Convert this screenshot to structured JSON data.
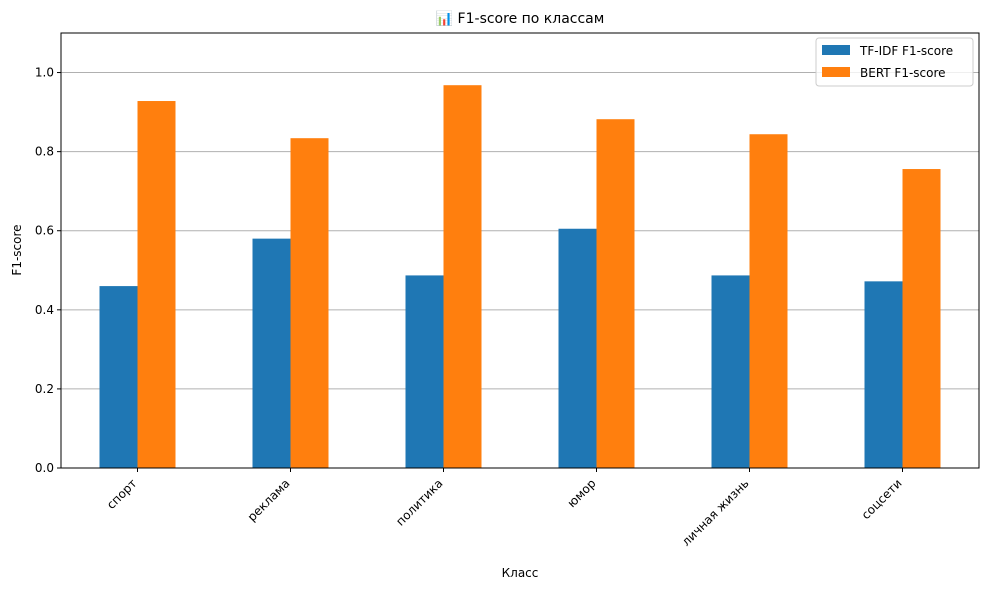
{
  "chart_data": {
    "type": "bar",
    "title": "📊 F1-score по классам",
    "xlabel": "Класс",
    "ylabel": "F1-score",
    "ylim": [
      0,
      1.1
    ],
    "yticks": [
      "0.0",
      "0.2",
      "0.4",
      "0.6",
      "0.8",
      "1.0"
    ],
    "categories": [
      "спорт",
      "реклама",
      "политика",
      "юмор",
      "личная жизнь",
      "соцсети"
    ],
    "series": [
      {
        "name": "TF-IDF F1-score",
        "color": "#1f77b4",
        "values": [
          0.46,
          0.58,
          0.487,
          0.605,
          0.487,
          0.472
        ]
      },
      {
        "name": "BERT F1-score",
        "color": "#ff7f0e",
        "values": [
          0.928,
          0.834,
          0.968,
          0.882,
          0.844,
          0.756
        ]
      }
    ],
    "grid": "y",
    "legend_position": "top-right",
    "xtick_rotation": 45
  }
}
